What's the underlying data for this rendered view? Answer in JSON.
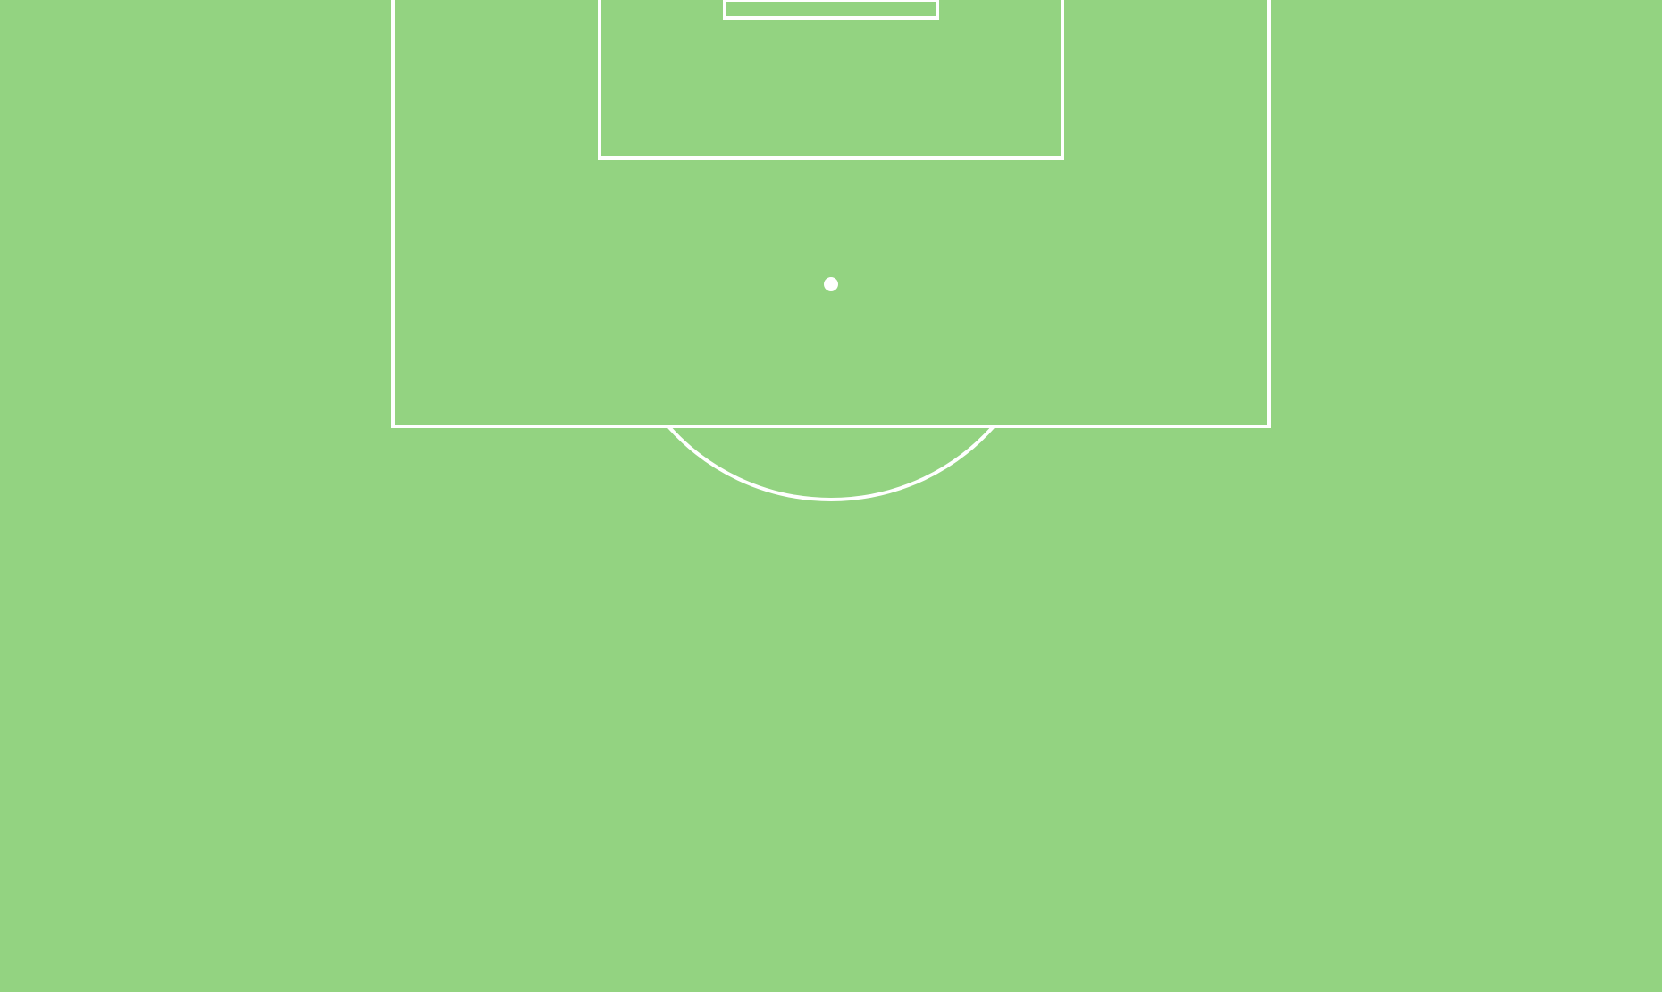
{
  "pitch": {
    "grass_color": "#93d381",
    "line_color": "#ffffff"
  }
}
